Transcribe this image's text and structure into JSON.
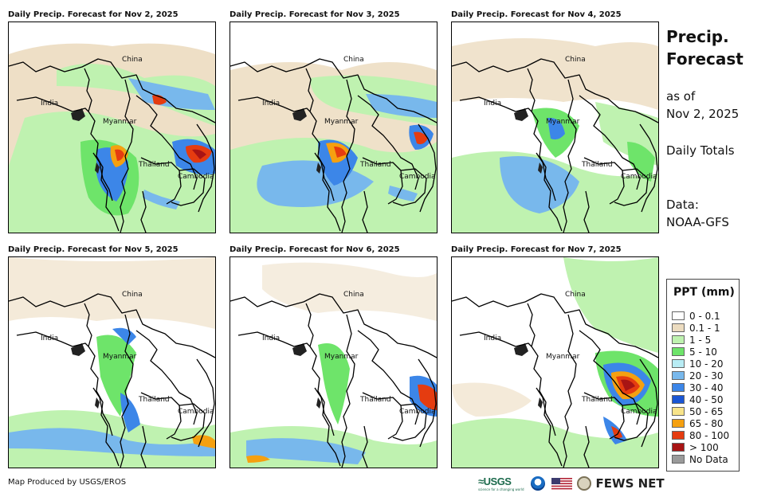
{
  "panels": [
    {
      "title": "Daily Precip. Forecast for Nov 2, 2025"
    },
    {
      "title": "Daily Precip. Forecast for Nov 3, 2025"
    },
    {
      "title": "Daily Precip. Forecast for Nov 4, 2025"
    },
    {
      "title": "Daily Precip. Forecast for Nov 5, 2025"
    },
    {
      "title": "Daily Precip. Forecast for Nov 6, 2025"
    },
    {
      "title": "Daily Precip. Forecast for Nov 7, 2025"
    }
  ],
  "map_labels": {
    "china": "China",
    "india": "India",
    "myanmar": "Myanmar",
    "thailand": "Thailand",
    "cambodia": "Cambodia"
  },
  "side": {
    "title": "Precip. Forecast",
    "as_of_line1": "as of",
    "as_of_line2": "Nov 2, 2025",
    "daily": "Daily Totals",
    "data_line1": "Data:",
    "data_line2": "NOAA-GFS"
  },
  "legend": {
    "title": "PPT (mm)",
    "items": [
      {
        "label": "0 - 0.1",
        "color": "#ffffff"
      },
      {
        "label": "0.1 - 1",
        "color": "#ecdcc0"
      },
      {
        "label": "1 - 5",
        "color": "#bff2b0"
      },
      {
        "label": "5 - 10",
        "color": "#6ee46a"
      },
      {
        "label": "10 - 20",
        "color": "#b8ecf4"
      },
      {
        "label": "20 - 30",
        "color": "#78b8ec"
      },
      {
        "label": "30 - 40",
        "color": "#3c86e8"
      },
      {
        "label": "40 - 50",
        "color": "#1a56d4"
      },
      {
        "label": "50 - 65",
        "color": "#f8e48a"
      },
      {
        "label": "65 - 80",
        "color": "#f5a010"
      },
      {
        "label": "80 - 100",
        "color": "#e53c10"
      },
      {
        "label": "> 100",
        "color": "#a81414"
      },
      {
        "label": "No Data",
        "color": "#9a9a9a"
      }
    ]
  },
  "footer": {
    "credit": "Map Produced by USGS/EROS",
    "usgs": "≈USGS",
    "usgs_tag": "science for a changing world",
    "fews": "FEWS NET"
  }
}
